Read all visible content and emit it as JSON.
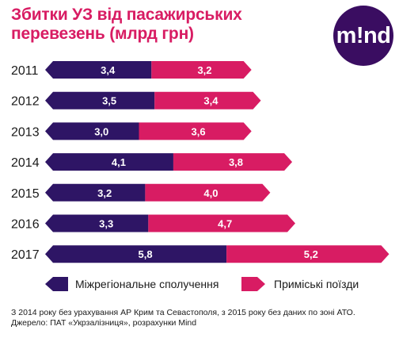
{
  "title_line1": "Збитки УЗ від пасажирських",
  "title_line2": "перевезень (млрд грн)",
  "logo_text": "m!nd",
  "footnote_line1": "З 2014 року без урахування АР Крим та Севастополя, з 2015 року без даних по зоні АТО.",
  "footnote_line2": "Джерело: ПАТ «Укрзалізниця», розрахунки Mind",
  "colors": {
    "title": "#d81c63",
    "logo_bg": "#3a0d61"
  },
  "chart_data": {
    "type": "bar",
    "orientation": "horizontal",
    "stacked": true,
    "categories": [
      "2011",
      "2012",
      "2013",
      "2014",
      "2015",
      "2016",
      "2017"
    ],
    "series": [
      {
        "name": "Міжрегіональне сполучення",
        "color": "#2e1565",
        "values": [
          3.4,
          3.5,
          3.0,
          4.1,
          3.2,
          3.3,
          5.8
        ],
        "labels": [
          "3,4",
          "3,5",
          "3,0",
          "4,1",
          "3,2",
          "3,3",
          "5,8"
        ]
      },
      {
        "name": "Приміські поїзди",
        "color": "#d81c63",
        "values": [
          3.2,
          3.4,
          3.6,
          3.8,
          4.0,
          4.7,
          5.2
        ],
        "labels": [
          "3,2",
          "3,4",
          "3,6",
          "3,8",
          "4,0",
          "4,7",
          "5,2"
        ]
      }
    ],
    "title": "Збитки УЗ від пасажирських перевезень (млрд грн)",
    "legend": "bottom",
    "grid": false
  }
}
